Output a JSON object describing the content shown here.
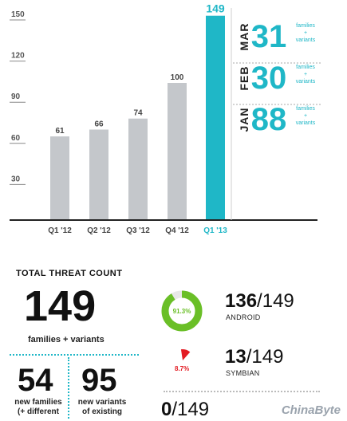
{
  "chart_data": {
    "type": "bar",
    "categories": [
      "Q1 '12",
      "Q2 '12",
      "Q3 '12",
      "Q4 '12",
      "Q1 '13"
    ],
    "values": [
      61,
      66,
      74,
      100,
      149
    ],
    "data_labels": [
      "61",
      "66",
      "74",
      "100",
      "149"
    ],
    "y_ticks": [
      30,
      60,
      90,
      120,
      150
    ],
    "y_tick_labels": [
      "30",
      "60",
      "90",
      "120",
      "150"
    ],
    "ylim": [
      0,
      150
    ],
    "grid": false,
    "highlight_index": 4,
    "colors": {
      "bar": "#c4c7cb",
      "highlight": "#1fb7c7",
      "axis": "#222222",
      "tick": "#888888"
    }
  },
  "months": [
    {
      "name": "MAR",
      "value": "31",
      "legend_top": "families",
      "legend_plus": "+",
      "legend_bottom": "variants"
    },
    {
      "name": "FEB",
      "value": "30",
      "legend_top": "families",
      "legend_plus": "+",
      "legend_bottom": "variants"
    },
    {
      "name": "JAN",
      "value": "88",
      "legend_top": "families",
      "legend_plus": "+",
      "legend_bottom": "variants"
    }
  ],
  "total": {
    "heading": "TOTAL THREAT COUNT",
    "value": "149",
    "subtitle": "families + variants"
  },
  "breakdown": {
    "families": {
      "value": "54",
      "line1": "new families",
      "line2": "(+ different"
    },
    "variants": {
      "value": "95",
      "line1": "new variants",
      "line2": "of existing"
    }
  },
  "platforms": [
    {
      "count": "136",
      "total": "149",
      "label": "ANDROID",
      "percent_text": "91.3%",
      "share": 0.913,
      "color": "#6abf27"
    },
    {
      "count": "13",
      "total": "149",
      "label": "SYMBIAN",
      "percent_text": "8.7%",
      "share": 0.087,
      "color": "#e31b23"
    },
    {
      "count": "0",
      "total": "149"
    }
  ],
  "watermark": "ChinaByte"
}
